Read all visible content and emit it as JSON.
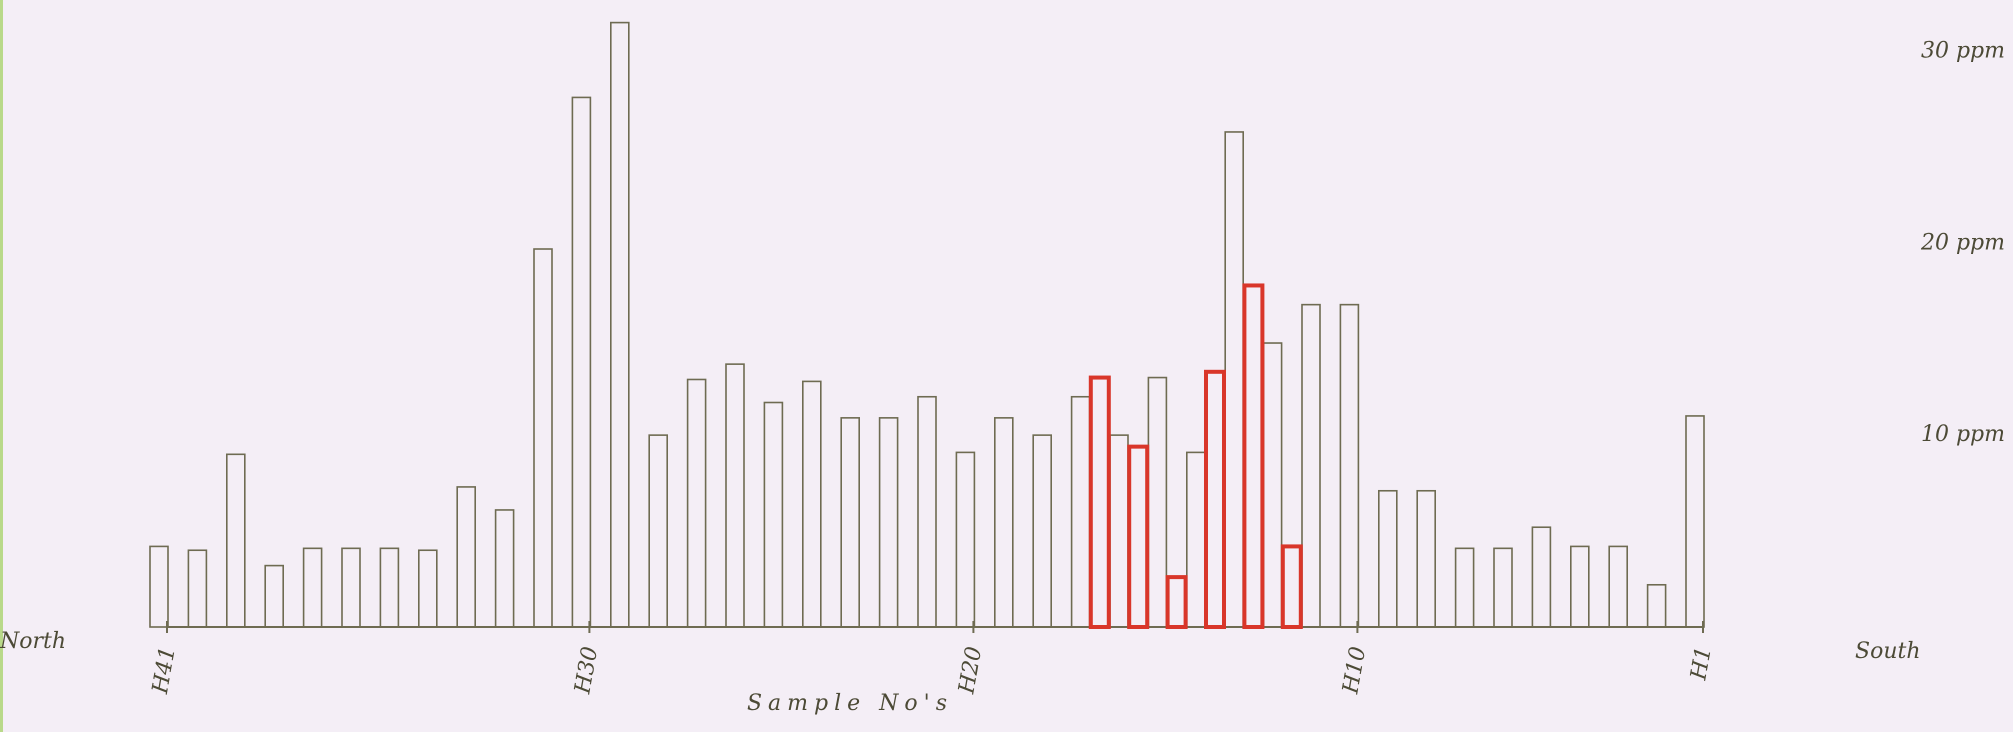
{
  "chart_data": {
    "type": "bar",
    "xlabel": "Sample No's",
    "annotations": [
      "North",
      "South"
    ],
    "categories": [
      "H41",
      null,
      null,
      null,
      null,
      null,
      null,
      null,
      null,
      null,
      null,
      "H30",
      null,
      null,
      null,
      null,
      null,
      null,
      null,
      null,
      null,
      "H20",
      null,
      null,
      null,
      null,
      null,
      null,
      null,
      null,
      null,
      "H10",
      null,
      null,
      null,
      null,
      null,
      null,
      null,
      null,
      "H1"
    ],
    "series": [
      {
        "color": "#6e6b52",
        "values": [
          4.2,
          4.0,
          9.0,
          3.2,
          4.1,
          4.1,
          4.1,
          4.0,
          7.3,
          6.1,
          19.7,
          27.6,
          31.5,
          10.0,
          12.9,
          13.7,
          11.7,
          12.8,
          10.9,
          10.9,
          12.0,
          9.1,
          10.9,
          10.0,
          12.0,
          10.0,
          13.0,
          9.1,
          25.8,
          14.8,
          16.8,
          16.8,
          7.1,
          7.1,
          4.1,
          4.1,
          5.2,
          4.2,
          4.2,
          2.2,
          11.0
        ]
      },
      {
        "color": "#d9362a",
        "values": [
          null,
          null,
          null,
          null,
          null,
          null,
          null,
          null,
          null,
          null,
          null,
          null,
          null,
          null,
          null,
          null,
          null,
          null,
          null,
          null,
          null,
          null,
          null,
          null,
          13.0,
          9.4,
          2.6,
          13.3,
          17.8,
          4.2,
          null,
          null,
          null,
          null,
          null,
          null,
          null,
          null,
          null,
          null,
          null
        ]
      }
    ],
    "ylim": [
      0,
      32
    ],
    "yticks": [
      {
        "value": 10,
        "label": "10 ppm"
      },
      {
        "value": 20,
        "label": "20 ppm"
      },
      {
        "value": 30,
        "label": "30 ppm"
      }
    ]
  }
}
